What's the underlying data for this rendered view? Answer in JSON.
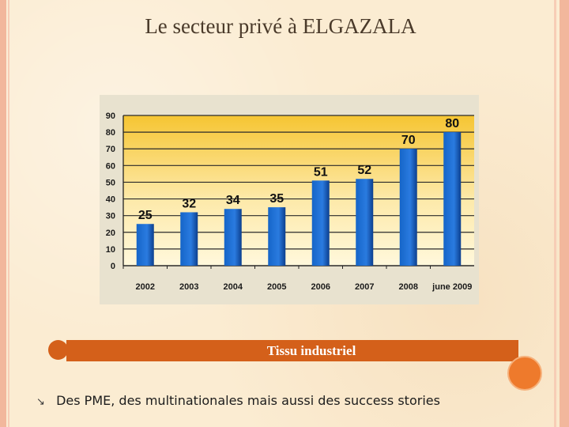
{
  "slide": {
    "title": "Le secteur privé à ELGAZALA",
    "band_label": "Tissu industriel",
    "bullet_icon": "arrow-down-right-icon",
    "bullet_text": "Des PME, des multinationales mais aussi des success stories"
  },
  "chart_data": {
    "type": "bar",
    "title": "",
    "xlabel": "",
    "ylabel": "",
    "categories": [
      "2002",
      "2003",
      "2004",
      "2005",
      "2006",
      "2007",
      "2008",
      "june 2009"
    ],
    "values": [
      25,
      32,
      34,
      35,
      51,
      52,
      70,
      80
    ],
    "value_labels": [
      "25",
      "32",
      "34",
      "35",
      "51",
      "52",
      "70",
      "80"
    ],
    "ylim": [
      0,
      90
    ],
    "yticks": [
      "0",
      "10",
      "20",
      "30",
      "40",
      "50",
      "60",
      "70",
      "80",
      "90"
    ],
    "grid": true,
    "legend": "none",
    "colors": {
      "bar": "#1565c8",
      "bar_dark": "#0c3f8e",
      "background_top": "#f6c532",
      "background_bottom": "#fff8dc",
      "grid": "#2a2a2a",
      "frame": "#e8e2cf"
    }
  }
}
